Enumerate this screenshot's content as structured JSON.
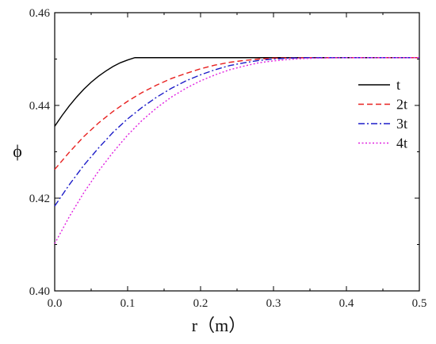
{
  "chart_data": {
    "type": "line",
    "xlabel": "r（m）",
    "ylabel": "ϕ",
    "xlim": [
      0.0,
      0.5
    ],
    "ylim": [
      0.4,
      0.46
    ],
    "xticks": [
      "0.0",
      "0.1",
      "0.2",
      "0.3",
      "0.4",
      "0.5"
    ],
    "yticks": [
      "0.40",
      "0.42",
      "0.44",
      "0.46"
    ],
    "legend_position": "right",
    "grid": false,
    "series": [
      {
        "name": "t",
        "color": "#000000",
        "dash": "solid",
        "x": [
          0.0,
          0.01,
          0.02,
          0.03,
          0.04,
          0.05,
          0.06,
          0.07,
          0.08,
          0.09,
          0.1,
          0.11,
          0.2,
          0.3,
          0.4,
          0.5
        ],
        "y": [
          0.4355,
          0.4378,
          0.4399,
          0.4418,
          0.4435,
          0.445,
          0.4463,
          0.4474,
          0.4484,
          0.4492,
          0.4498,
          0.4503,
          0.4503,
          0.4503,
          0.4503,
          0.4503
        ]
      },
      {
        "name": "2t",
        "color": "#e8201f",
        "dash": "dashed",
        "x": [
          0.0,
          0.02,
          0.04,
          0.06,
          0.08,
          0.1,
          0.12,
          0.14,
          0.16,
          0.18,
          0.2,
          0.22,
          0.24,
          0.26,
          0.28,
          0.3,
          0.35,
          0.4,
          0.5
        ],
        "y": [
          0.4262,
          0.4299,
          0.4333,
          0.4362,
          0.4387,
          0.4409,
          0.4428,
          0.4444,
          0.4458,
          0.4469,
          0.4479,
          0.4487,
          0.4493,
          0.4497,
          0.45,
          0.4502,
          0.4503,
          0.4503,
          0.4503
        ]
      },
      {
        "name": "3t",
        "color": "#1c1cc8",
        "dash": "dashdot",
        "x": [
          0.0,
          0.02,
          0.04,
          0.06,
          0.08,
          0.1,
          0.12,
          0.14,
          0.16,
          0.18,
          0.2,
          0.22,
          0.24,
          0.26,
          0.28,
          0.3,
          0.32,
          0.35,
          0.4,
          0.5
        ],
        "y": [
          0.4183,
          0.4229,
          0.4271,
          0.4308,
          0.4342,
          0.4371,
          0.4396,
          0.4418,
          0.4437,
          0.4453,
          0.4466,
          0.4477,
          0.4486,
          0.4492,
          0.4497,
          0.45,
          0.4502,
          0.4503,
          0.4503,
          0.4503
        ]
      },
      {
        "name": "4t",
        "color": "#e020e0",
        "dash": "dotted",
        "x": [
          0.0,
          0.02,
          0.04,
          0.06,
          0.08,
          0.1,
          0.12,
          0.14,
          0.16,
          0.18,
          0.2,
          0.22,
          0.24,
          0.26,
          0.28,
          0.3,
          0.32,
          0.34,
          0.36,
          0.4,
          0.5
        ],
        "y": [
          0.4102,
          0.416,
          0.4212,
          0.4258,
          0.4299,
          0.4336,
          0.4368,
          0.4395,
          0.4418,
          0.4437,
          0.4453,
          0.4466,
          0.4477,
          0.4485,
          0.4492,
          0.4496,
          0.4499,
          0.4501,
          0.4502,
          0.4503,
          0.4503
        ]
      }
    ]
  }
}
